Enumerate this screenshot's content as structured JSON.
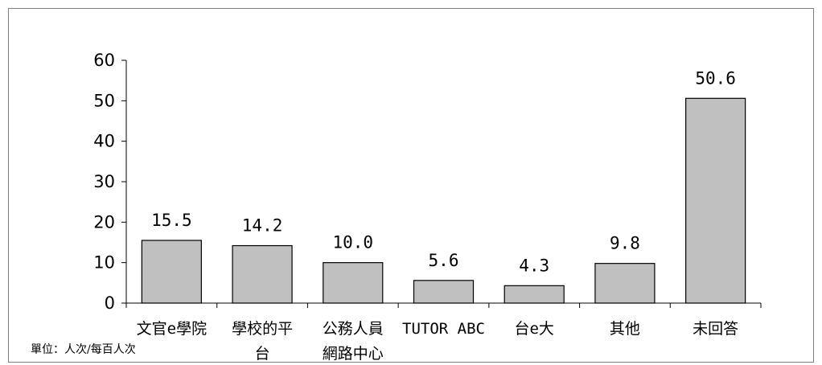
{
  "chart_data": {
    "type": "bar",
    "categories": [
      "文官e學院",
      "學校的平台",
      "公務人員網路中心",
      "TUTOR ABC",
      "台e大",
      "其他",
      "未回答"
    ],
    "category_lines": [
      [
        "文官e學院"
      ],
      [
        "學校的平",
        "台"
      ],
      [
        "公務人員",
        "網路中心"
      ],
      [
        "TUTOR ABC"
      ],
      [
        "台e大"
      ],
      [
        "其他"
      ],
      [
        "未回答"
      ]
    ],
    "values": [
      15.5,
      14.2,
      10.0,
      5.6,
      4.3,
      9.8,
      50.6
    ],
    "value_labels": [
      "15.5",
      "14.2",
      "10.0",
      "5.6",
      "4.3",
      "9.8",
      "50.6"
    ],
    "ylim": [
      0,
      60
    ],
    "yticks": [
      0,
      10,
      20,
      30,
      40,
      50,
      60
    ],
    "title": "",
    "xlabel": "",
    "ylabel": "",
    "grid": false,
    "legend": "none",
    "colors": {
      "bar_fill": "#c0c0c0",
      "bar_stroke": "#000000",
      "axis": "#000000"
    }
  },
  "unit_note": "單位：人次/每百人次"
}
